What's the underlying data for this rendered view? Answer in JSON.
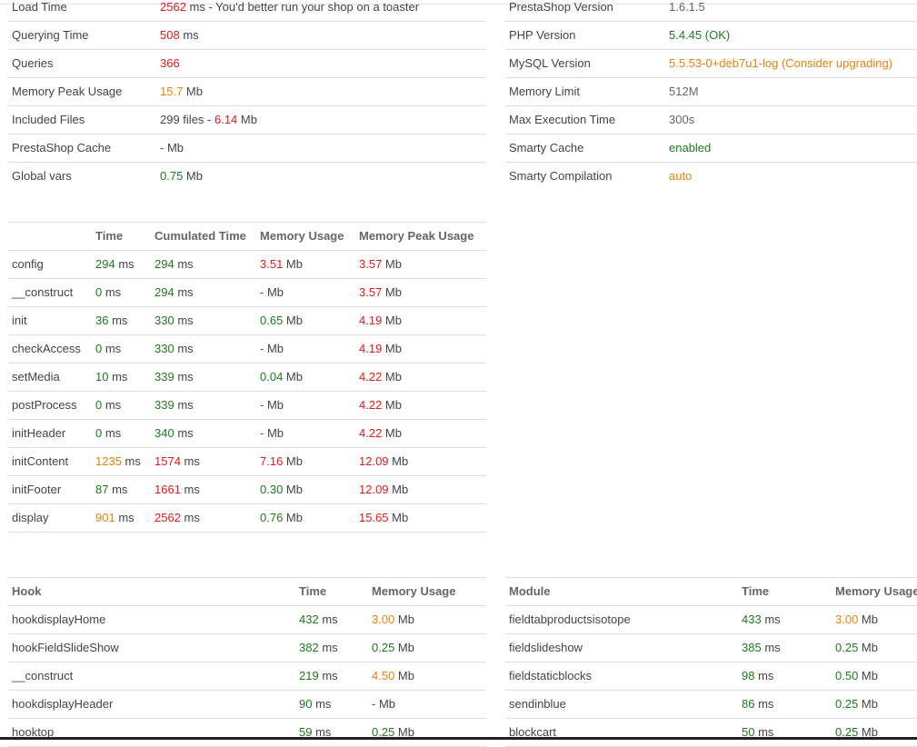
{
  "colors": {
    "green": "#1f7a1f",
    "orange": "#e8820c",
    "red": "#e61919",
    "label": "#444444"
  },
  "summary_left": [
    {
      "label": "Load Time",
      "value": "2562",
      "value_unit": " ms - You'd better run your shop on a toaster"
    },
    {
      "label": "Querying Time",
      "value": "508",
      "value_unit": " ms"
    },
    {
      "label": "Queries",
      "value": "366",
      "value_unit": ""
    },
    {
      "label": "Memory Peak Usage",
      "value": "15.7",
      "value_unit": " Mb"
    },
    {
      "label": "Included Files",
      "value": "299 files - ",
      "value2": "6.14",
      "value2_unit": " Mb"
    },
    {
      "label": "PrestaShop Cache",
      "value": "-",
      "value_unit": " Mb"
    },
    {
      "label": "Global vars",
      "value": "0.75",
      "value_unit": " Mb"
    }
  ],
  "summary_right": [
    {
      "label": "PrestaShop Version",
      "value": "1.6.1.5"
    },
    {
      "label": "PHP Version",
      "value": "5.4.45 (OK)"
    },
    {
      "label": "MySQL Version",
      "value": "5.5.53-0+deb7u1-log (Consider upgrading)"
    },
    {
      "label": "Memory Limit",
      "value": "512M"
    },
    {
      "label": "Max Execution Time",
      "value": "300s"
    },
    {
      "label": "Smarty Cache",
      "value": "enabled"
    },
    {
      "label": "Smarty Compilation",
      "value": "auto"
    }
  ],
  "timing_table": {
    "headers": [
      "",
      "Time",
      "Cumulated Time",
      "Memory Usage",
      "Memory Peak Usage"
    ],
    "rows": [
      {
        "name": "config",
        "time": "294",
        "cumul": "294",
        "mem": "3.51",
        "peak": "3.57"
      },
      {
        "name": "__construct",
        "time": "0",
        "cumul": "294",
        "mem": "-",
        "peak": "3.57"
      },
      {
        "name": "init",
        "time": "36",
        "cumul": "330",
        "mem": "0.65",
        "peak": "4.19"
      },
      {
        "name": "checkAccess",
        "time": "0",
        "cumul": "330",
        "mem": "-",
        "peak": "4.19"
      },
      {
        "name": "setMedia",
        "time": "10",
        "cumul": "339",
        "mem": "0.04",
        "peak": "4.22"
      },
      {
        "name": "postProcess",
        "time": "0",
        "cumul": "339",
        "mem": "-",
        "peak": "4.22"
      },
      {
        "name": "initHeader",
        "time": "0",
        "cumul": "340",
        "mem": "-",
        "peak": "4.22"
      },
      {
        "name": "initContent",
        "time": "1235",
        "cumul": "1574",
        "mem": "7.16",
        "peak": "12.09"
      },
      {
        "name": "initFooter",
        "time": "87",
        "cumul": "1661",
        "mem": "0.30",
        "peak": "12.09"
      },
      {
        "name": "display",
        "time": "901",
        "cumul": "2562",
        "mem": "0.76",
        "peak": "15.65"
      }
    ],
    "unit_ms": " ms",
    "unit_mb": " Mb"
  },
  "hooks_table": {
    "headers": [
      "Hook",
      "Time",
      "Memory Usage"
    ],
    "rows": [
      {
        "name": "hookdisplayHome",
        "time": "432",
        "mem": "3.00"
      },
      {
        "name": "hookFieldSlideShow",
        "time": "382",
        "mem": "0.25"
      },
      {
        "name": "__construct",
        "time": "219",
        "mem": "4.50"
      },
      {
        "name": "hookdisplayHeader",
        "time": "90",
        "mem": "-"
      },
      {
        "name": "hooktop",
        "time": "59",
        "mem": "0.25"
      }
    ]
  },
  "modules_table": {
    "headers": [
      "Module",
      "Time",
      "Memory Usage"
    ],
    "rows": [
      {
        "name": "fieldtabproductsisotope",
        "time": "433",
        "mem": "3.00"
      },
      {
        "name": "fieldslideshow",
        "time": "385",
        "mem": "0.25"
      },
      {
        "name": "fieldstaticblocks",
        "time": "98",
        "mem": "0.50"
      },
      {
        "name": "sendinblue",
        "time": "86",
        "mem": "0.25"
      },
      {
        "name": "blockcart",
        "time": "50",
        "mem": "0.25"
      }
    ]
  }
}
